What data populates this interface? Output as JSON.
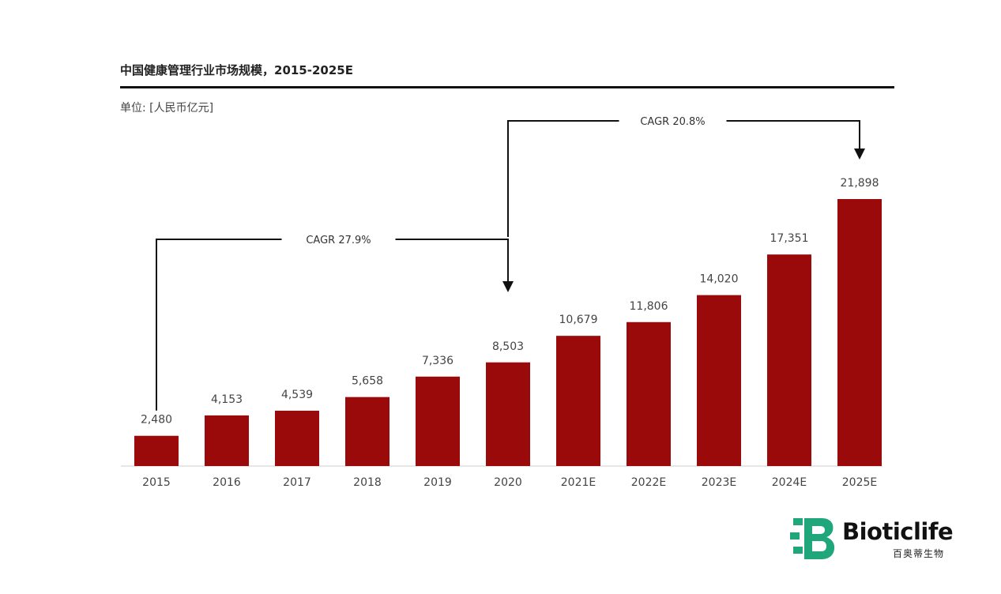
{
  "chart_data": {
    "type": "bar",
    "title": "中国健康管理行业市场规模，2015-2025E",
    "unit": "单位: [人民币亿元]",
    "categories": [
      "2015",
      "2016",
      "2017",
      "2018",
      "2019",
      "2020",
      "2021E",
      "2022E",
      "2023E",
      "2024E",
      "2025E"
    ],
    "values": [
      2480,
      4153,
      4539,
      5658,
      7336,
      8503,
      10679,
      11806,
      14020,
      17351,
      21898
    ],
    "value_labels": [
      "2,480",
      "4,153",
      "4,539",
      "5,658",
      "7,336",
      "8,503",
      "10,679",
      "11,806",
      "14,020",
      "17,351",
      "21,898"
    ],
    "ylim": [
      0,
      22000
    ],
    "grid": false,
    "bar_color": "#9b0a0a",
    "annotations": [
      {
        "text": "CAGR 27.9%",
        "from": "2015",
        "to": "2020"
      },
      {
        "text": "CAGR 20.8%",
        "from": "2020",
        "to": "2025E"
      }
    ]
  },
  "logo": {
    "name": "Bioticlife",
    "subtitle": "百奥蒂生物",
    "colors": {
      "green": "#1fa67a",
      "dark": "#111111"
    }
  }
}
